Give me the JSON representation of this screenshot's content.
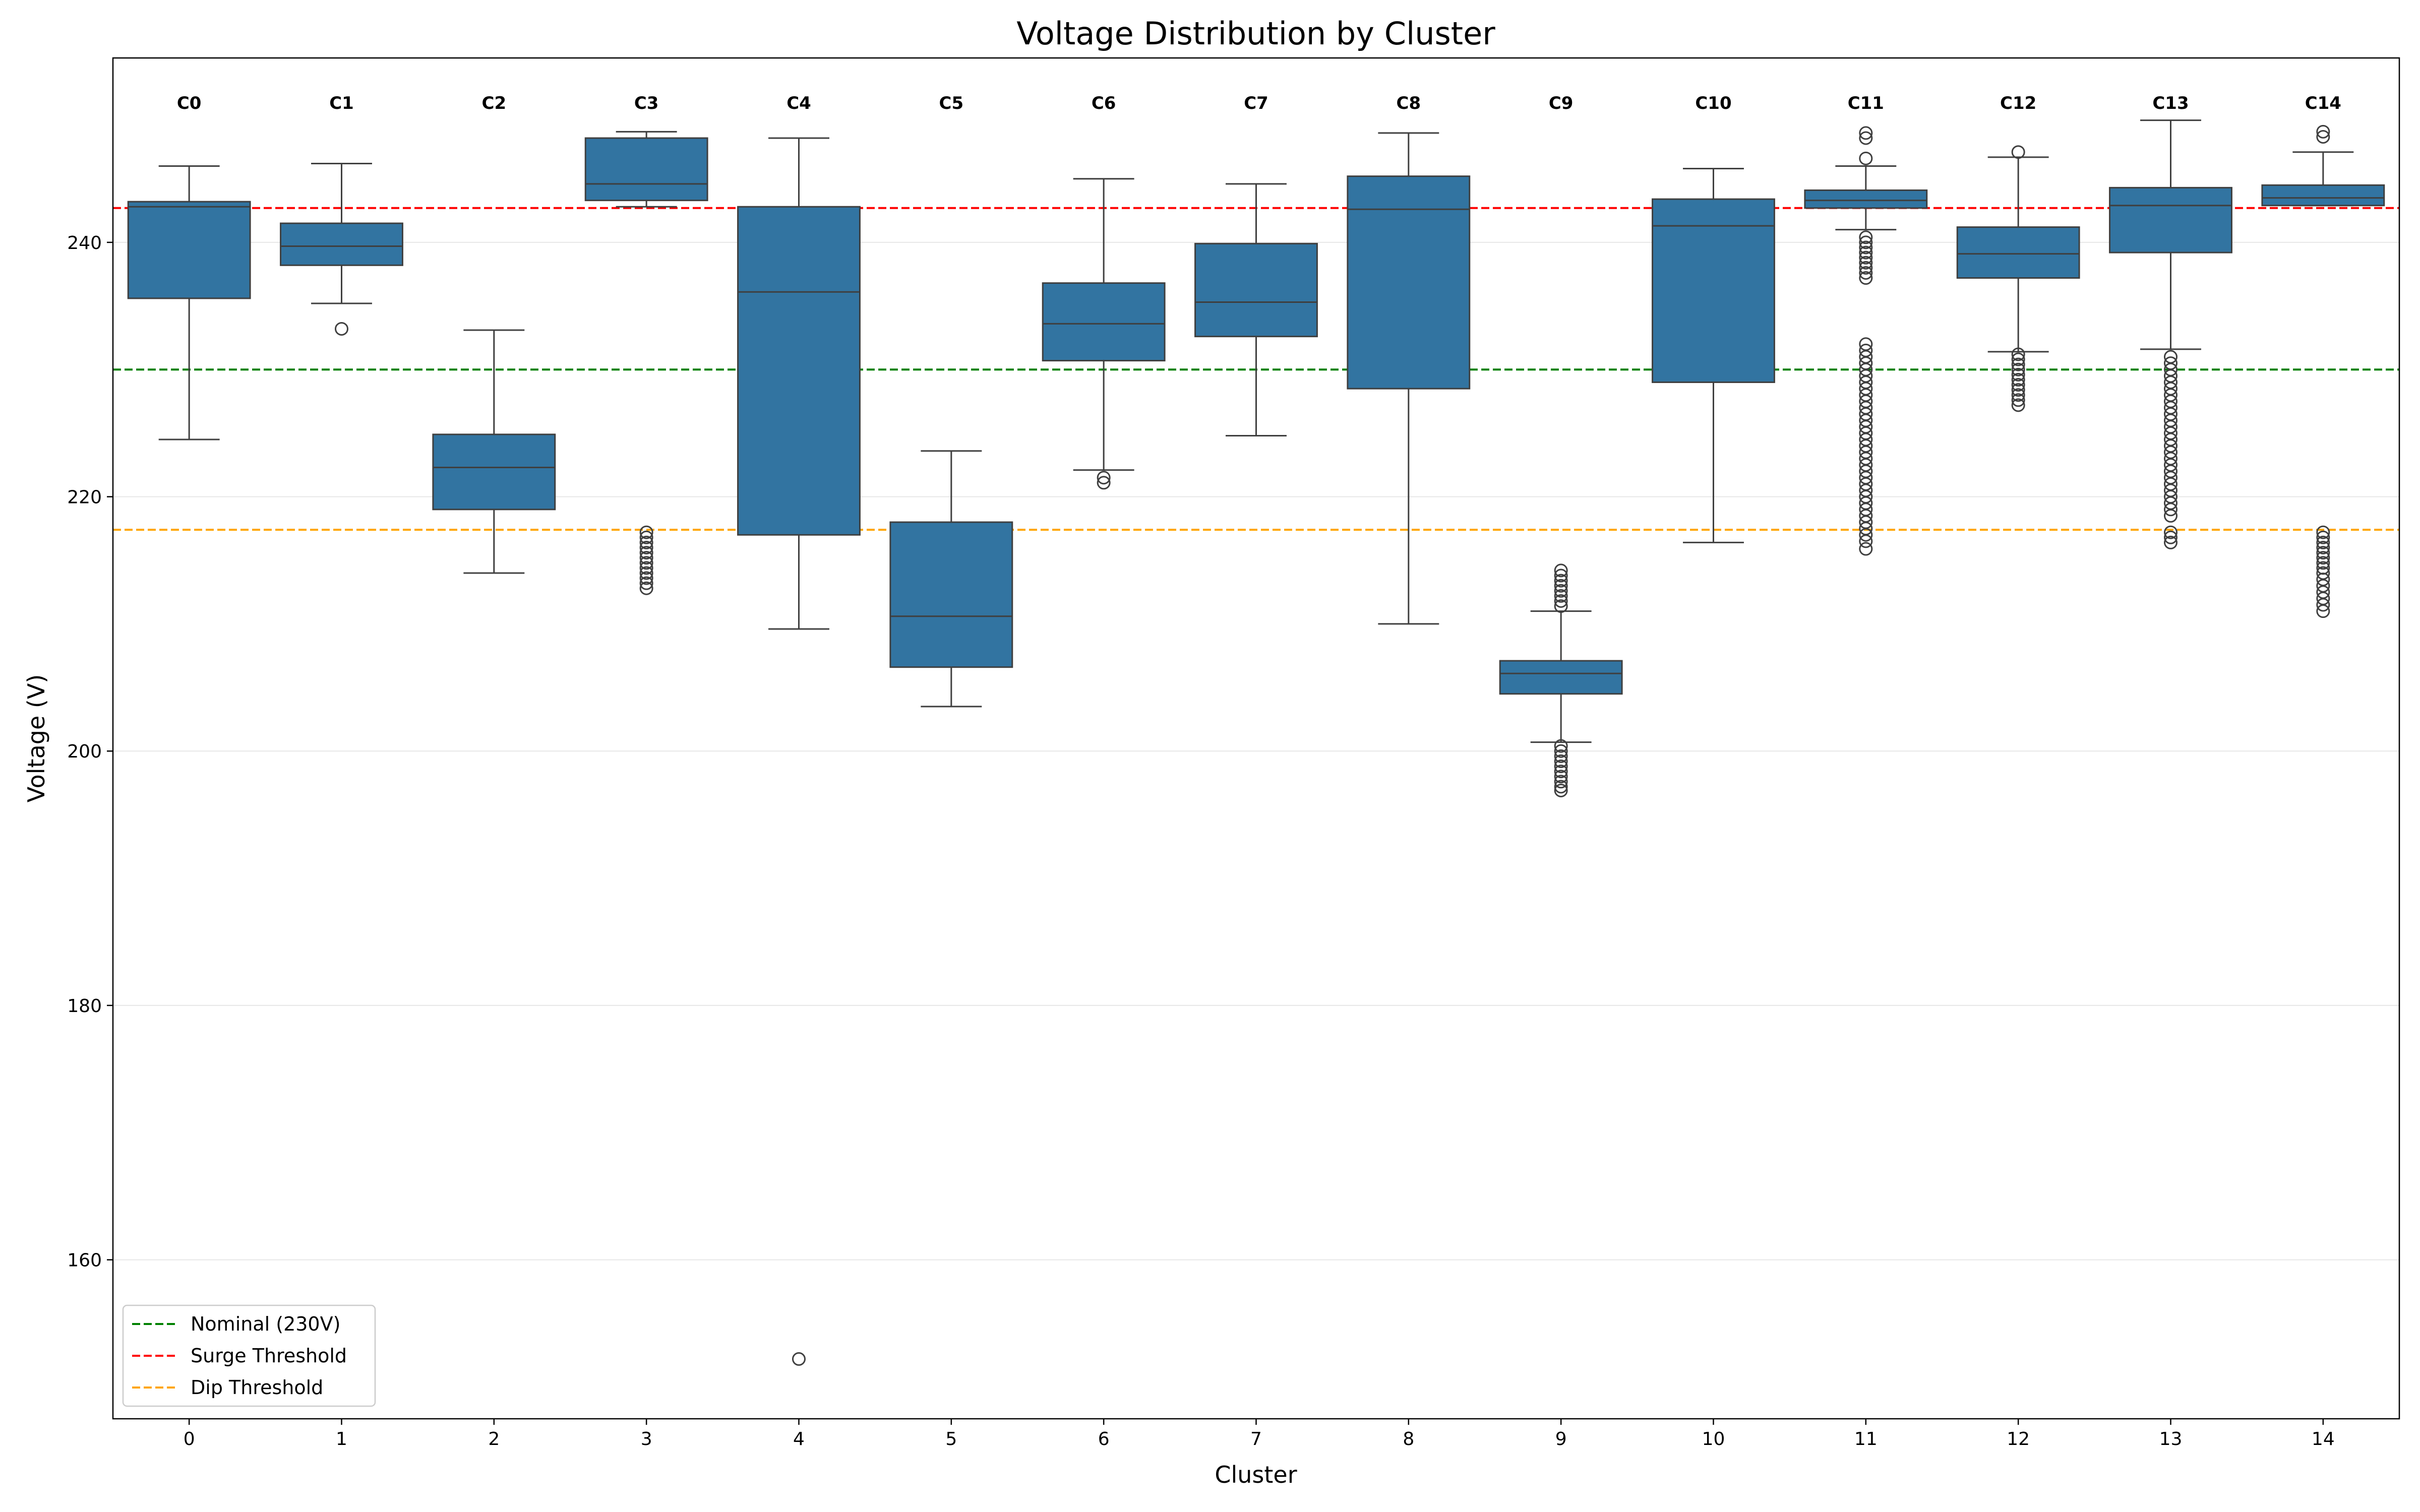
{
  "chart_data": {
    "type": "box",
    "title": "Voltage Distribution by Cluster",
    "xlabel": "Cluster",
    "ylabel": "Voltage (V)",
    "ylim": [
      147.5,
      254.5
    ],
    "yticks": [
      160,
      180,
      200,
      220,
      240
    ],
    "grid": "y",
    "box_color": "#3274a1",
    "categories": [
      "0",
      "1",
      "2",
      "3",
      "4",
      "5",
      "6",
      "7",
      "8",
      "9",
      "10",
      "11",
      "12",
      "13",
      "14"
    ],
    "cluster_labels": [
      "C0",
      "C1",
      "C2",
      "C3",
      "C4",
      "C5",
      "C6",
      "C7",
      "C8",
      "C9",
      "C10",
      "C11",
      "C12",
      "C13",
      "C14"
    ],
    "boxes": [
      {
        "whislo": 224.5,
        "q1": 235.6,
        "med": 242.8,
        "q3": 243.2,
        "whishi": 246.0,
        "fliers": []
      },
      {
        "whislo": 235.2,
        "q1": 238.2,
        "med": 239.7,
        "q3": 241.5,
        "whishi": 246.2,
        "fliers": [
          233.2
        ]
      },
      {
        "whislo": 214.0,
        "q1": 219.0,
        "med": 222.3,
        "q3": 224.9,
        "whishi": 233.1,
        "fliers": []
      },
      {
        "whislo": 242.8,
        "q1": 243.3,
        "med": 244.6,
        "q3": 248.2,
        "whishi": 248.7,
        "fliers": [
          217.2,
          216.8,
          216.4,
          216.0,
          215.6,
          215.2,
          214.8,
          214.4,
          214.0,
          213.6,
          213.2,
          212.8
        ]
      },
      {
        "whislo": 209.6,
        "q1": 217.0,
        "med": 236.1,
        "q3": 242.8,
        "whishi": 248.2,
        "fliers": [
          152.2
        ]
      },
      {
        "whislo": 203.5,
        "q1": 206.6,
        "med": 210.6,
        "q3": 218.0,
        "whishi": 223.6,
        "fliers": []
      },
      {
        "whislo": 222.1,
        "q1": 230.7,
        "med": 233.6,
        "q3": 236.8,
        "whishi": 245.0,
        "fliers": [
          221.5,
          221.1
        ]
      },
      {
        "whislo": 224.8,
        "q1": 232.6,
        "med": 235.3,
        "q3": 239.9,
        "whishi": 244.6,
        "fliers": []
      },
      {
        "whislo": 210.0,
        "q1": 228.5,
        "med": 242.6,
        "q3": 245.2,
        "whishi": 248.6,
        "fliers": []
      },
      {
        "whislo": 200.7,
        "q1": 204.5,
        "med": 206.1,
        "q3": 207.1,
        "whishi": 211.0,
        "fliers": [
          214.2,
          213.8,
          213.4,
          213.0,
          212.6,
          212.2,
          211.8,
          211.4,
          200.4,
          200.0,
          199.6,
          199.2,
          198.8,
          198.4,
          198.0,
          197.6,
          197.2,
          196.9
        ]
      },
      {
        "whislo": 216.4,
        "q1": 229.0,
        "med": 241.3,
        "q3": 243.4,
        "whishi": 245.8,
        "fliers": []
      },
      {
        "whislo": 241.0,
        "q1": 242.7,
        "med": 243.3,
        "q3": 244.1,
        "whishi": 246.0,
        "fliers": [
          248.6,
          248.2,
          246.6,
          240.4,
          240.0,
          239.6,
          239.2,
          238.8,
          238.4,
          238.0,
          237.6,
          237.2,
          232.0,
          231.5,
          231.0,
          230.5,
          230.0,
          229.5,
          229.0,
          228.5,
          228.0,
          227.5,
          227.0,
          226.5,
          226.0,
          225.5,
          225.0,
          224.5,
          224.0,
          223.5,
          223.0,
          222.5,
          222.0,
          221.5,
          221.0,
          220.5,
          220.0,
          219.5,
          219.0,
          218.5,
          218.0,
          217.5,
          217.0,
          216.5,
          215.9
        ]
      },
      {
        "whislo": 231.4,
        "q1": 237.2,
        "med": 239.1,
        "q3": 241.2,
        "whishi": 246.7,
        "fliers": [
          247.1,
          231.2,
          230.8,
          230.4,
          230.0,
          229.6,
          229.2,
          228.8,
          228.4,
          228.0,
          227.6,
          227.2
        ]
      },
      {
        "whislo": 231.6,
        "q1": 239.2,
        "med": 242.9,
        "q3": 244.3,
        "whishi": 249.6,
        "fliers": [
          231.0,
          230.5,
          230.0,
          229.5,
          229.0,
          228.5,
          228.0,
          227.5,
          227.0,
          226.5,
          226.0,
          225.5,
          225.0,
          224.5,
          224.0,
          223.5,
          223.0,
          222.5,
          222.0,
          221.5,
          221.0,
          220.5,
          220.0,
          219.5,
          219.0,
          218.5,
          217.2,
          216.8,
          216.4
        ]
      },
      {
        "whislo": 242.9,
        "q1": 242.9,
        "med": 243.5,
        "q3": 244.5,
        "whishi": 247.1,
        "fliers": [
          248.7,
          248.3,
          217.2,
          216.8,
          216.4,
          216.0,
          215.6,
          215.2,
          214.8,
          214.4,
          214.0,
          213.5,
          213.0,
          212.5,
          212.0,
          211.5,
          211.0
        ]
      }
    ],
    "reference_lines": [
      {
        "name": "Nominal (230V)",
        "value": 230.0,
        "color": "#008000"
      },
      {
        "name": "Surge Threshold",
        "value": 242.7,
        "color": "#ff0000"
      },
      {
        "name": "Dip Threshold",
        "value": 217.4,
        "color": "#ffa500"
      }
    ],
    "legend_position": "lower-left"
  }
}
